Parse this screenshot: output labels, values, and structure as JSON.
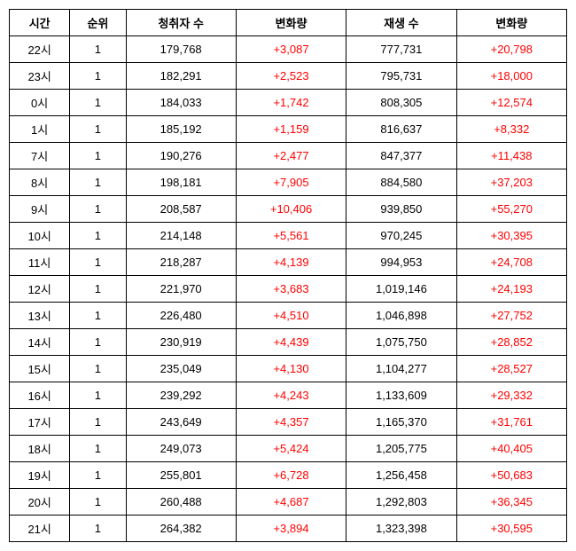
{
  "table": {
    "headers": [
      "시간",
      "순위",
      "청취자 수",
      "변화량",
      "재생 수",
      "변화량"
    ],
    "rows": [
      {
        "time": "22시",
        "rank": "1",
        "listeners": "179,768",
        "change1": "+3,087",
        "plays": "777,731",
        "change2": "+20,798"
      },
      {
        "time": "23시",
        "rank": "1",
        "listeners": "182,291",
        "change1": "+2,523",
        "plays": "795,731",
        "change2": "+18,000"
      },
      {
        "time": "0시",
        "rank": "1",
        "listeners": "184,033",
        "change1": "+1,742",
        "plays": "808,305",
        "change2": "+12,574"
      },
      {
        "time": "1시",
        "rank": "1",
        "listeners": "185,192",
        "change1": "+1,159",
        "plays": "816,637",
        "change2": "+8,332"
      },
      {
        "time": "7시",
        "rank": "1",
        "listeners": "190,276",
        "change1": "+2,477",
        "plays": "847,377",
        "change2": "+11,438"
      },
      {
        "time": "8시",
        "rank": "1",
        "listeners": "198,181",
        "change1": "+7,905",
        "plays": "884,580",
        "change2": "+37,203"
      },
      {
        "time": "9시",
        "rank": "1",
        "listeners": "208,587",
        "change1": "+10,406",
        "plays": "939,850",
        "change2": "+55,270"
      },
      {
        "time": "10시",
        "rank": "1",
        "listeners": "214,148",
        "change1": "+5,561",
        "plays": "970,245",
        "change2": "+30,395"
      },
      {
        "time": "11시",
        "rank": "1",
        "listeners": "218,287",
        "change1": "+4,139",
        "plays": "994,953",
        "change2": "+24,708"
      },
      {
        "time": "12시",
        "rank": "1",
        "listeners": "221,970",
        "change1": "+3,683",
        "plays": "1,019,146",
        "change2": "+24,193"
      },
      {
        "time": "13시",
        "rank": "1",
        "listeners": "226,480",
        "change1": "+4,510",
        "plays": "1,046,898",
        "change2": "+27,752"
      },
      {
        "time": "14시",
        "rank": "1",
        "listeners": "230,919",
        "change1": "+4,439",
        "plays": "1,075,750",
        "change2": "+28,852"
      },
      {
        "time": "15시",
        "rank": "1",
        "listeners": "235,049",
        "change1": "+4,130",
        "plays": "1,104,277",
        "change2": "+28,527"
      },
      {
        "time": "16시",
        "rank": "1",
        "listeners": "239,292",
        "change1": "+4,243",
        "plays": "1,133,609",
        "change2": "+29,332"
      },
      {
        "time": "17시",
        "rank": "1",
        "listeners": "243,649",
        "change1": "+4,357",
        "plays": "1,165,370",
        "change2": "+31,761"
      },
      {
        "time": "18시",
        "rank": "1",
        "listeners": "249,073",
        "change1": "+5,424",
        "plays": "1,205,775",
        "change2": "+40,405"
      },
      {
        "time": "19시",
        "rank": "1",
        "listeners": "255,801",
        "change1": "+6,728",
        "plays": "1,256,458",
        "change2": "+50,683"
      },
      {
        "time": "20시",
        "rank": "1",
        "listeners": "260,488",
        "change1": "+4,687",
        "plays": "1,292,803",
        "change2": "+36,345"
      },
      {
        "time": "21시",
        "rank": "1",
        "listeners": "264,382",
        "change1": "+3,894",
        "plays": "1,323,398",
        "change2": "+30,595"
      }
    ],
    "colors": {
      "change": "#ff0000",
      "border": "#000000",
      "background": "#ffffff"
    }
  }
}
